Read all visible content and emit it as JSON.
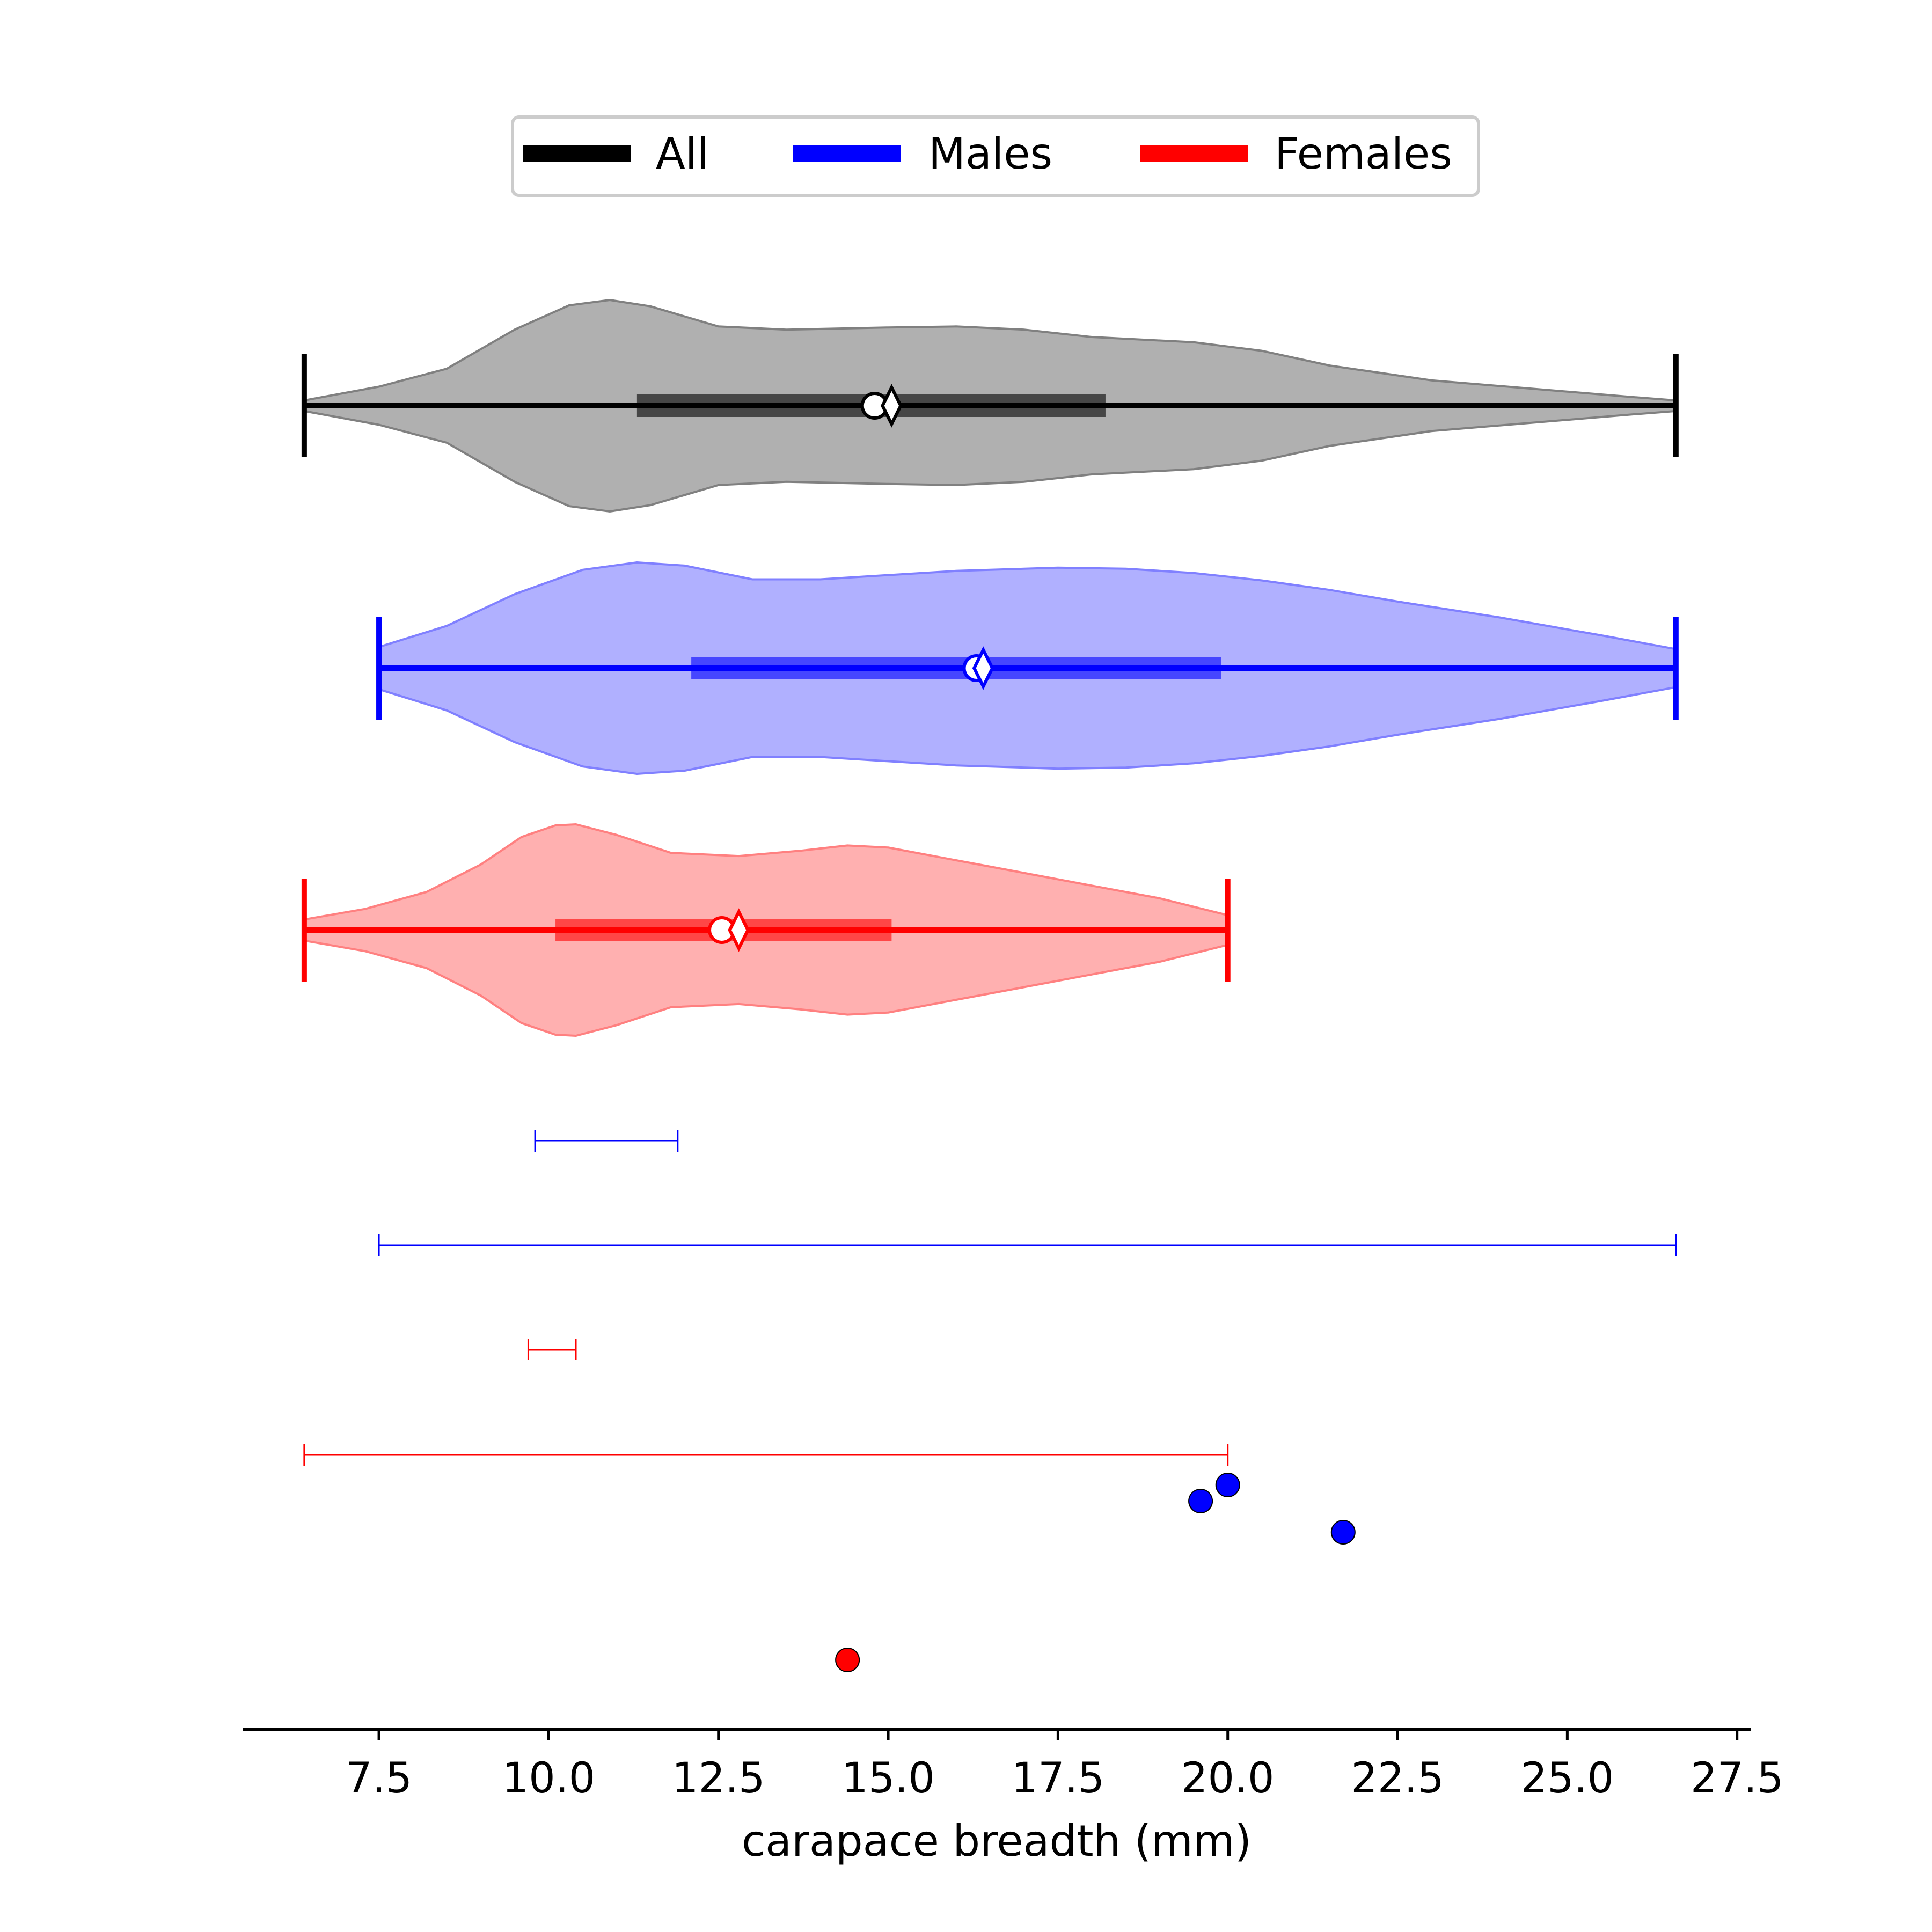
{
  "chart_data": {
    "type": "violin",
    "title": "",
    "xlabel": "carapace breadth (mm)",
    "ylabel": "",
    "xlim": [
      5.5,
      27.7
    ],
    "x_ticks": [
      7.5,
      10.0,
      12.5,
      15.0,
      17.5,
      20.0,
      22.5,
      25.0,
      27.5
    ],
    "x_tick_labels": [
      "7.5",
      "10.0",
      "12.5",
      "15.0",
      "17.5",
      "20.0",
      "22.5",
      "25.0",
      "27.5"
    ],
    "grid": false,
    "legend": {
      "placement": "top-center",
      "entries": [
        {
          "label": "All",
          "color": "#000000"
        },
        {
          "label": "Males",
          "color": "#0000ff"
        },
        {
          "label": "Females",
          "color": "#ff0000"
        }
      ]
    },
    "violins": [
      {
        "group": "All",
        "color": "#000000",
        "fill": "#b0b0b0",
        "edge": "#808080",
        "min": 6.4,
        "max": 26.6,
        "q1": 11.3,
        "q3": 18.2,
        "median": 14.8,
        "mean": 15.05,
        "density": [
          [
            6.4,
            0.05
          ],
          [
            7.5,
            0.18
          ],
          [
            8.5,
            0.35
          ],
          [
            9.5,
            0.72
          ],
          [
            10.3,
            0.95
          ],
          [
            10.9,
            1.0
          ],
          [
            11.5,
            0.94
          ],
          [
            12.5,
            0.75
          ],
          [
            13.5,
            0.72
          ],
          [
            15.0,
            0.74
          ],
          [
            16.0,
            0.75
          ],
          [
            17.0,
            0.72
          ],
          [
            18.0,
            0.65
          ],
          [
            19.5,
            0.6
          ],
          [
            20.5,
            0.52
          ],
          [
            21.5,
            0.38
          ],
          [
            23.0,
            0.24
          ],
          [
            24.5,
            0.16
          ],
          [
            26.0,
            0.08
          ],
          [
            26.6,
            0.05
          ]
        ]
      },
      {
        "group": "Males",
        "color": "#0000ff",
        "fill": "#b0b0ff",
        "edge": "#8080ff",
        "min": 7.5,
        "max": 26.6,
        "q1": 12.1,
        "q3": 19.9,
        "median": 16.3,
        "mean": 16.4,
        "density": [
          [
            7.5,
            0.2
          ],
          [
            8.5,
            0.4
          ],
          [
            9.5,
            0.7
          ],
          [
            10.5,
            0.93
          ],
          [
            11.3,
            1.0
          ],
          [
            12.0,
            0.97
          ],
          [
            13.0,
            0.84
          ],
          [
            14.0,
            0.84
          ],
          [
            15.0,
            0.88
          ],
          [
            16.0,
            0.92
          ],
          [
            17.5,
            0.95
          ],
          [
            18.5,
            0.94
          ],
          [
            19.5,
            0.9
          ],
          [
            20.5,
            0.83
          ],
          [
            21.5,
            0.74
          ],
          [
            22.5,
            0.63
          ],
          [
            24.0,
            0.48
          ],
          [
            25.5,
            0.31
          ],
          [
            26.6,
            0.18
          ]
        ]
      },
      {
        "group": "Females",
        "color": "#ff0000",
        "fill": "#ffb0b0",
        "edge": "#ff8080",
        "min": 6.4,
        "max": 20.0,
        "q1": 10.1,
        "q3": 15.05,
        "median": 12.55,
        "mean": 12.8,
        "density": [
          [
            6.4,
            0.1
          ],
          [
            7.3,
            0.2
          ],
          [
            8.2,
            0.36
          ],
          [
            9.0,
            0.62
          ],
          [
            9.6,
            0.88
          ],
          [
            10.1,
            0.99
          ],
          [
            10.4,
            1.0
          ],
          [
            11.0,
            0.9
          ],
          [
            11.8,
            0.73
          ],
          [
            12.8,
            0.7
          ],
          [
            13.7,
            0.75
          ],
          [
            14.4,
            0.8
          ],
          [
            15.0,
            0.78
          ],
          [
            16.0,
            0.66
          ],
          [
            17.0,
            0.54
          ],
          [
            18.0,
            0.42
          ],
          [
            19.0,
            0.3
          ],
          [
            20.0,
            0.14
          ]
        ]
      }
    ],
    "intervals": [
      {
        "color": "#0000ff",
        "low": 9.8,
        "high": 11.9
      },
      {
        "color": "#0000ff",
        "low": 7.5,
        "high": 26.6
      },
      {
        "color": "#ff0000",
        "low": 9.7,
        "high": 10.4
      },
      {
        "color": "#ff0000",
        "low": 6.4,
        "high": 20.0
      }
    ],
    "points": [
      {
        "color": "#0000ff",
        "x": 19.6
      },
      {
        "color": "#0000ff",
        "x": 20.0
      },
      {
        "color": "#0000ff",
        "x": 21.7
      },
      {
        "color": "#ff0000",
        "x": 14.4
      }
    ]
  }
}
